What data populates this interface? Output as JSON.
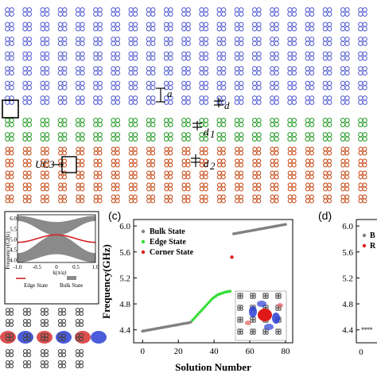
{
  "top_figure": {
    "labels": {
      "a": "a",
      "d": "d",
      "d1": "d",
      "d1_sub": "1",
      "d2": "d",
      "d2_sub": "2",
      "uc3": "UC3"
    },
    "colors": {
      "blue": "#5a64d2",
      "green": "#2e9e2e",
      "orange": "#c8501e",
      "black": "#444444"
    }
  },
  "panel_b": {
    "inset": {
      "ylabel": "Frequency(GHz)",
      "xlabel": "k(π/a)",
      "yticks": [
        "6.0",
        "5.5",
        "5.0",
        "4.5",
        "4.0"
      ],
      "xticks": [
        "-1.0",
        "-0.5",
        "0",
        "0.5",
        "1.0"
      ],
      "legend": [
        {
          "name": "Edge State",
          "color": "#d62020"
        },
        {
          "name": "Bulk State",
          "color": "#8a8a8a"
        }
      ]
    }
  },
  "panel_c": {
    "label": "(c)",
    "chart_data": {
      "type": "scatter",
      "xlabel": "Solution Number",
      "ylabel": "Frequency(GHz)",
      "xlim": [
        -5,
        84
      ],
      "ylim": [
        4.2,
        6.1
      ],
      "xticks": [
        0,
        20,
        40,
        60,
        80
      ],
      "yticks": [
        "4.4",
        "4.8",
        "5.2",
        "5.6",
        "6.0"
      ],
      "series": [
        {
          "name": "Bulk State",
          "color": "#808080",
          "x": [
            0,
            1,
            2,
            3,
            4,
            5,
            6,
            7,
            8,
            9,
            10,
            11,
            12,
            13,
            14,
            15,
            16,
            17,
            18,
            19,
            20,
            21,
            22,
            23,
            24,
            25,
            26,
            27,
            51,
            52,
            53,
            54,
            55,
            56,
            57,
            58,
            59,
            60,
            61,
            62,
            63,
            64,
            65,
            66,
            67,
            68,
            69,
            70,
            71,
            72,
            73,
            74,
            75,
            76,
            77,
            78,
            79,
            80
          ],
          "y": [
            4.38,
            4.385,
            4.39,
            4.395,
            4.4,
            4.405,
            4.41,
            4.415,
            4.42,
            4.425,
            4.43,
            4.435,
            4.44,
            4.445,
            4.45,
            4.455,
            4.46,
            4.465,
            4.47,
            4.475,
            4.48,
            4.485,
            4.49,
            4.495,
            4.5,
            4.505,
            4.51,
            4.52,
            5.88,
            5.885,
            5.89,
            5.895,
            5.9,
            5.905,
            5.91,
            5.915,
            5.92,
            5.925,
            5.93,
            5.935,
            5.94,
            5.945,
            5.95,
            5.955,
            5.96,
            5.965,
            5.97,
            5.975,
            5.98,
            5.985,
            5.99,
            5.995,
            6.0,
            6.005,
            6.01,
            6.015,
            6.02,
            6.025
          ]
        },
        {
          "name": "Edge State",
          "color": "#33dd33",
          "x": [
            28,
            29,
            30,
            31,
            32,
            33,
            34,
            35,
            36,
            37,
            38,
            39,
            40,
            41,
            42,
            43,
            44,
            45,
            46,
            47,
            48,
            49
          ],
          "y": [
            4.55,
            4.58,
            4.61,
            4.64,
            4.67,
            4.7,
            4.73,
            4.76,
            4.79,
            4.82,
            4.85,
            4.88,
            4.9,
            4.92,
            4.94,
            4.95,
            4.96,
            4.97,
            4.98,
            4.985,
            4.99,
            4.995
          ]
        },
        {
          "name": "Corner State",
          "color": "#dd2020",
          "x": [
            50
          ],
          "y": [
            5.52
          ]
        }
      ]
    }
  },
  "panel_d": {
    "label": "(d)",
    "chart_data": {
      "type": "scatter",
      "ylim": [
        4.2,
        6.1
      ],
      "yticks": [
        "6.0",
        "5.6",
        "5.2",
        "4.8",
        "4.4"
      ],
      "xticks": [
        "0"
      ],
      "legend": [
        {
          "name": "B",
          "color": "#808080"
        },
        {
          "name": "R",
          "color": "#dd2020"
        }
      ],
      "series": [
        {
          "color": "#808080",
          "x": [
            0,
            1,
            2,
            3
          ],
          "y": [
            4.42,
            4.42,
            4.42,
            4.42
          ]
        }
      ]
    }
  }
}
